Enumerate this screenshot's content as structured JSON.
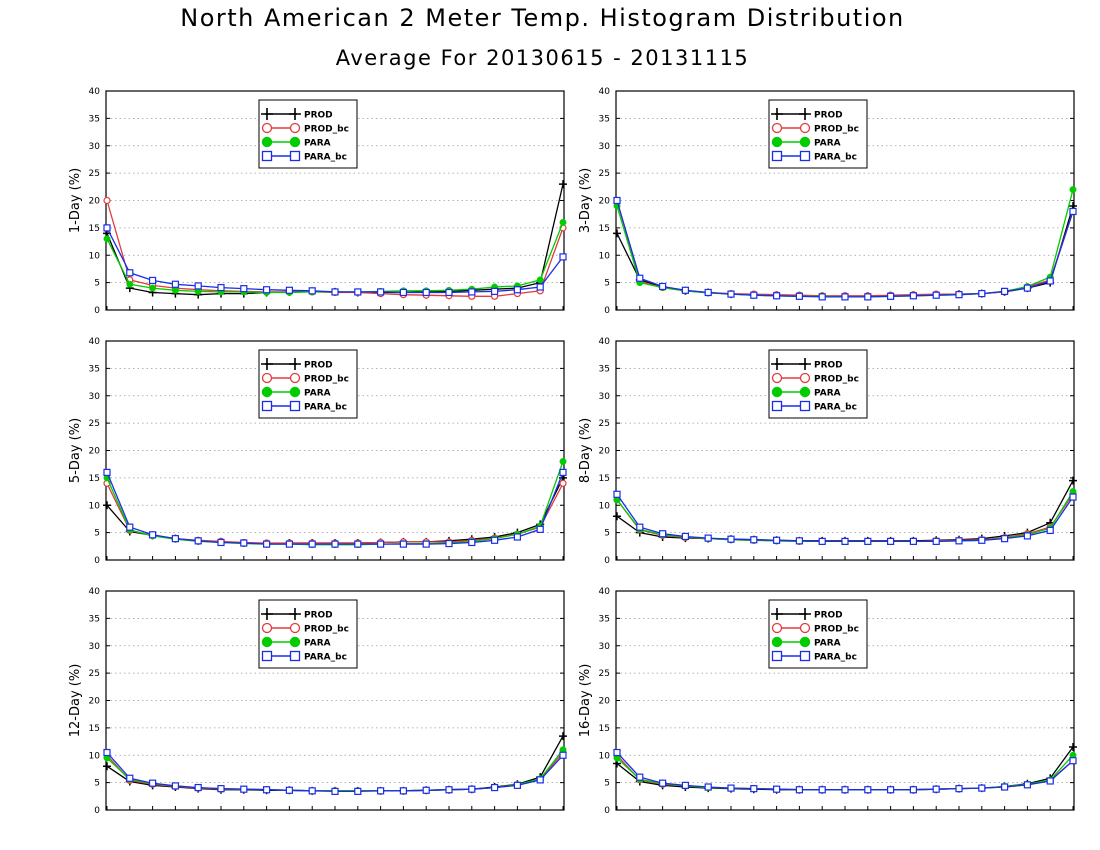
{
  "header": {
    "title": "North American 2 Meter Temp. Histogram Distribution",
    "subtitle": "Average For 20130615 - 20131115"
  },
  "legend_labels": [
    "PROD",
    "PROD_bc",
    "PARA",
    "PARA_bc"
  ],
  "series_styles": [
    {
      "color": "#000000",
      "marker": "plus"
    },
    {
      "color": "#e23b3b",
      "marker": "open-circle"
    },
    {
      "color": "#00cc00",
      "marker": "filled-circle"
    },
    {
      "color": "#1a2ee8",
      "marker": "open-square"
    }
  ],
  "chart_data": [
    {
      "type": "line",
      "ylabel": "1-Day (%)",
      "ylim": [
        0,
        40
      ],
      "yticks": [
        "0",
        "5",
        "10",
        "15",
        "20",
        "25",
        "30",
        "35",
        "40"
      ],
      "grid": true,
      "legend_placement": "top-center",
      "series": [
        {
          "name": "PROD",
          "values": [
            14,
            4,
            3.2,
            3,
            2.8,
            3,
            3,
            3.2,
            3.3,
            3.4,
            3.3,
            3.2,
            3.2,
            3.2,
            3.3,
            3.4,
            3.6,
            3.8,
            4,
            5,
            23
          ]
        },
        {
          "name": "PROD_bc",
          "values": [
            20,
            5.5,
            4.5,
            4,
            3.7,
            3.5,
            3.4,
            3.3,
            3.3,
            3.3,
            3.2,
            3.2,
            3,
            2.8,
            2.7,
            2.6,
            2.5,
            2.5,
            3,
            3.5,
            15
          ]
        },
        {
          "name": "PARA",
          "values": [
            13,
            4.7,
            4,
            3.6,
            3.4,
            3.3,
            3.3,
            3.2,
            3.2,
            3.3,
            3.3,
            3.3,
            3.4,
            3.5,
            3.5,
            3.6,
            3.8,
            4.2,
            4.4,
            5.5,
            16
          ]
        },
        {
          "name": "PARA_bc",
          "values": [
            15,
            6.8,
            5.4,
            4.7,
            4.4,
            4.1,
            3.9,
            3.7,
            3.6,
            3.5,
            3.3,
            3.3,
            3.3,
            3.2,
            3.2,
            3.2,
            3.3,
            3.4,
            3.7,
            4.2,
            9.7
          ]
        }
      ]
    },
    {
      "type": "line",
      "ylabel": "3-Day (%)",
      "ylim": [
        0,
        40
      ],
      "yticks": [
        "0",
        "5",
        "10",
        "15",
        "20",
        "25",
        "30",
        "35",
        "40"
      ],
      "grid": true,
      "legend_placement": "top-center",
      "series": [
        {
          "name": "PROD",
          "values": [
            14,
            5.5,
            4.2,
            3.5,
            3.2,
            2.9,
            2.8,
            2.7,
            2.6,
            2.5,
            2.5,
            2.5,
            2.6,
            2.7,
            2.8,
            2.9,
            3,
            3.3,
            4,
            5,
            19
          ]
        },
        {
          "name": "PROD_bc",
          "values": [
            20,
            5.2,
            4.1,
            3.5,
            3.2,
            3,
            2.9,
            2.8,
            2.7,
            2.6,
            2.6,
            2.6,
            2.7,
            2.8,
            2.9,
            2.9,
            3,
            3.3,
            4.2,
            5.5,
            18
          ]
        },
        {
          "name": "PARA",
          "values": [
            19,
            5,
            4.1,
            3.5,
            3.1,
            2.9,
            2.7,
            2.6,
            2.5,
            2.5,
            2.4,
            2.4,
            2.5,
            2.6,
            2.7,
            2.8,
            3,
            3.4,
            4.3,
            6,
            22
          ]
        },
        {
          "name": "PARA_bc",
          "values": [
            20,
            5.8,
            4.3,
            3.6,
            3.2,
            2.9,
            2.7,
            2.6,
            2.5,
            2.4,
            2.4,
            2.4,
            2.5,
            2.6,
            2.7,
            2.8,
            3,
            3.4,
            4,
            5.3,
            18
          ]
        }
      ]
    },
    {
      "type": "line",
      "ylabel": "5-Day (%)",
      "ylim": [
        0,
        40
      ],
      "yticks": [
        "0",
        "5",
        "10",
        "15",
        "20",
        "25",
        "30",
        "35",
        "40"
      ],
      "grid": true,
      "legend_placement": "top-center",
      "series": [
        {
          "name": "PROD",
          "values": [
            10,
            5.2,
            4.5,
            3.9,
            3.5,
            3.3,
            3.1,
            3,
            3.1,
            3.1,
            3.1,
            3.1,
            3.2,
            3.3,
            3.3,
            3.5,
            3.8,
            4.2,
            5,
            6.5,
            15
          ]
        },
        {
          "name": "PROD_bc",
          "values": [
            14,
            5.4,
            4.5,
            3.9,
            3.6,
            3.4,
            3.2,
            3.1,
            3.1,
            3.1,
            3.1,
            3.1,
            3.2,
            3.3,
            3.3,
            3.3,
            3.6,
            4,
            4.7,
            6,
            14
          ]
        },
        {
          "name": "PARA",
          "values": [
            15,
            5.5,
            4.4,
            3.8,
            3.4,
            3.2,
            3,
            2.9,
            2.9,
            2.8,
            2.8,
            2.8,
            2.9,
            3,
            3,
            3.1,
            3.4,
            3.9,
            4.7,
            6.2,
            18
          ]
        },
        {
          "name": "PARA_bc",
          "values": [
            16,
            6,
            4.6,
            3.9,
            3.5,
            3.2,
            3.1,
            2.9,
            2.9,
            2.9,
            2.9,
            2.9,
            2.9,
            2.9,
            2.9,
            3,
            3.2,
            3.6,
            4.2,
            5.6,
            16
          ]
        }
      ]
    },
    {
      "type": "line",
      "ylabel": "8-Day (%)",
      "ylim": [
        0,
        40
      ],
      "yticks": [
        "0",
        "5",
        "10",
        "15",
        "20",
        "25",
        "30",
        "35",
        "40"
      ],
      "grid": true,
      "legend_placement": "top-center",
      "series": [
        {
          "name": "PROD",
          "values": [
            8,
            5,
            4.2,
            4,
            3.9,
            3.8,
            3.7,
            3.6,
            3.5,
            3.5,
            3.5,
            3.5,
            3.5,
            3.5,
            3.6,
            3.7,
            3.9,
            4.4,
            5,
            6.8,
            14.5
          ]
        },
        {
          "name": "PROD_bc",
          "values": [
            11,
            5.5,
            4.5,
            4.1,
            3.9,
            3.7,
            3.6,
            3.5,
            3.4,
            3.4,
            3.4,
            3.4,
            3.4,
            3.4,
            3.5,
            3.6,
            3.7,
            4.1,
            4.8,
            6,
            12
          ]
        },
        {
          "name": "PARA",
          "values": [
            11,
            5.6,
            4.6,
            4.2,
            3.9,
            3.7,
            3.6,
            3.5,
            3.4,
            3.4,
            3.4,
            3.4,
            3.4,
            3.4,
            3.4,
            3.5,
            3.6,
            4,
            4.6,
            5.8,
            12.5
          ]
        },
        {
          "name": "PARA_bc",
          "values": [
            12,
            6,
            4.8,
            4.3,
            4,
            3.8,
            3.7,
            3.6,
            3.5,
            3.4,
            3.4,
            3.4,
            3.4,
            3.4,
            3.4,
            3.5,
            3.6,
            3.9,
            4.4,
            5.4,
            11.5
          ]
        }
      ]
    },
    {
      "type": "line",
      "ylabel": "12-Day (%)",
      "ylim": [
        0,
        40
      ],
      "yticks": [
        "0",
        "5",
        "10",
        "15",
        "20",
        "25",
        "30",
        "35",
        "40"
      ],
      "grid": true,
      "legend_placement": "top-center",
      "series": [
        {
          "name": "PROD",
          "values": [
            8,
            5.2,
            4.5,
            4.2,
            3.9,
            3.7,
            3.7,
            3.6,
            3.6,
            3.5,
            3.5,
            3.5,
            3.5,
            3.5,
            3.6,
            3.7,
            3.8,
            4.2,
            4.7,
            6,
            13.5
          ]
        },
        {
          "name": "PROD_bc",
          "values": [
            10,
            5.4,
            4.7,
            4.3,
            4,
            3.8,
            3.8,
            3.7,
            3.6,
            3.5,
            3.5,
            3.5,
            3.5,
            3.5,
            3.6,
            3.7,
            3.8,
            4.1,
            4.6,
            5.6,
            10.5
          ]
        },
        {
          "name": "PARA",
          "values": [
            9.5,
            5.6,
            4.8,
            4.4,
            4.1,
            3.9,
            3.8,
            3.7,
            3.6,
            3.5,
            3.5,
            3.5,
            3.5,
            3.5,
            3.6,
            3.7,
            3.8,
            4.1,
            4.6,
            5.7,
            11
          ]
        },
        {
          "name": "PARA_bc",
          "values": [
            10.5,
            5.8,
            4.9,
            4.4,
            4.1,
            3.9,
            3.8,
            3.7,
            3.6,
            3.5,
            3.4,
            3.4,
            3.5,
            3.5,
            3.6,
            3.7,
            3.8,
            4.1,
            4.5,
            5.5,
            10
          ]
        }
      ]
    },
    {
      "type": "line",
      "ylabel": "16-Day (%)",
      "ylim": [
        0,
        40
      ],
      "yticks": [
        "0",
        "5",
        "10",
        "15",
        "20",
        "25",
        "30",
        "35",
        "40"
      ],
      "grid": true,
      "legend_placement": "top-center",
      "series": [
        {
          "name": "PROD",
          "values": [
            8.5,
            5.2,
            4.5,
            4.2,
            4,
            3.9,
            3.8,
            3.7,
            3.7,
            3.7,
            3.7,
            3.7,
            3.7,
            3.7,
            3.8,
            3.9,
            4,
            4.3,
            4.8,
            5.8,
            11.5
          ]
        },
        {
          "name": "PROD_bc",
          "values": [
            10,
            5.5,
            4.7,
            4.4,
            4.1,
            4,
            3.9,
            3.8,
            3.7,
            3.7,
            3.7,
            3.7,
            3.7,
            3.7,
            3.8,
            3.9,
            4,
            4.2,
            4.6,
            5.4,
            9
          ]
        },
        {
          "name": "PARA",
          "values": [
            9.5,
            5.6,
            4.8,
            4.4,
            4.1,
            4,
            3.9,
            3.8,
            3.7,
            3.7,
            3.7,
            3.7,
            3.7,
            3.7,
            3.8,
            3.9,
            4,
            4.3,
            4.7,
            5.5,
            10
          ]
        },
        {
          "name": "PARA_bc",
          "values": [
            10.5,
            6,
            4.9,
            4.5,
            4.2,
            4,
            3.9,
            3.8,
            3.7,
            3.7,
            3.7,
            3.7,
            3.7,
            3.7,
            3.8,
            3.9,
            4,
            4.2,
            4.6,
            5.3,
            9
          ]
        }
      ]
    }
  ]
}
